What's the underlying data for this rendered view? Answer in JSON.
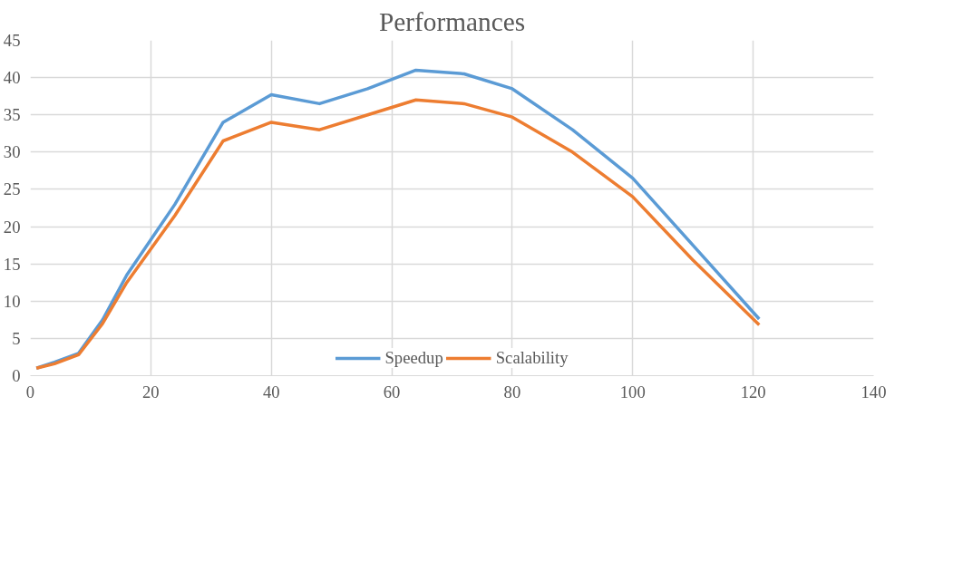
{
  "chart_data": {
    "type": "line",
    "title": "Performances",
    "x": [
      1,
      4,
      8,
      12,
      16,
      24,
      32,
      40,
      48,
      56,
      64,
      72,
      80,
      90,
      100,
      110,
      121
    ],
    "series": [
      {
        "name": "Speedup",
        "color": "#5b9bd5",
        "values": [
          1,
          1.8,
          3,
          7.5,
          13.5,
          23,
          34,
          37.7,
          36.5,
          38.5,
          41,
          40.5,
          38.5,
          33,
          26.5,
          17.5,
          7.6
        ]
      },
      {
        "name": "Scalability",
        "color": "#ed7d31",
        "values": [
          1,
          1.6,
          2.8,
          7,
          12.5,
          21.5,
          31.5,
          34,
          33,
          35,
          37,
          36.5,
          34.7,
          30,
          24,
          15.5,
          6.8
        ]
      }
    ],
    "xlim": [
      0,
      140
    ],
    "xticks": [
      0,
      20,
      40,
      60,
      80,
      100,
      120,
      140
    ],
    "ylim": [
      0,
      45
    ],
    "yticks": [
      0,
      5,
      10,
      15,
      20,
      25,
      30,
      35,
      40,
      45
    ],
    "grid": true,
    "legend": "bottom",
    "marker": "none",
    "line_style": "solid"
  }
}
